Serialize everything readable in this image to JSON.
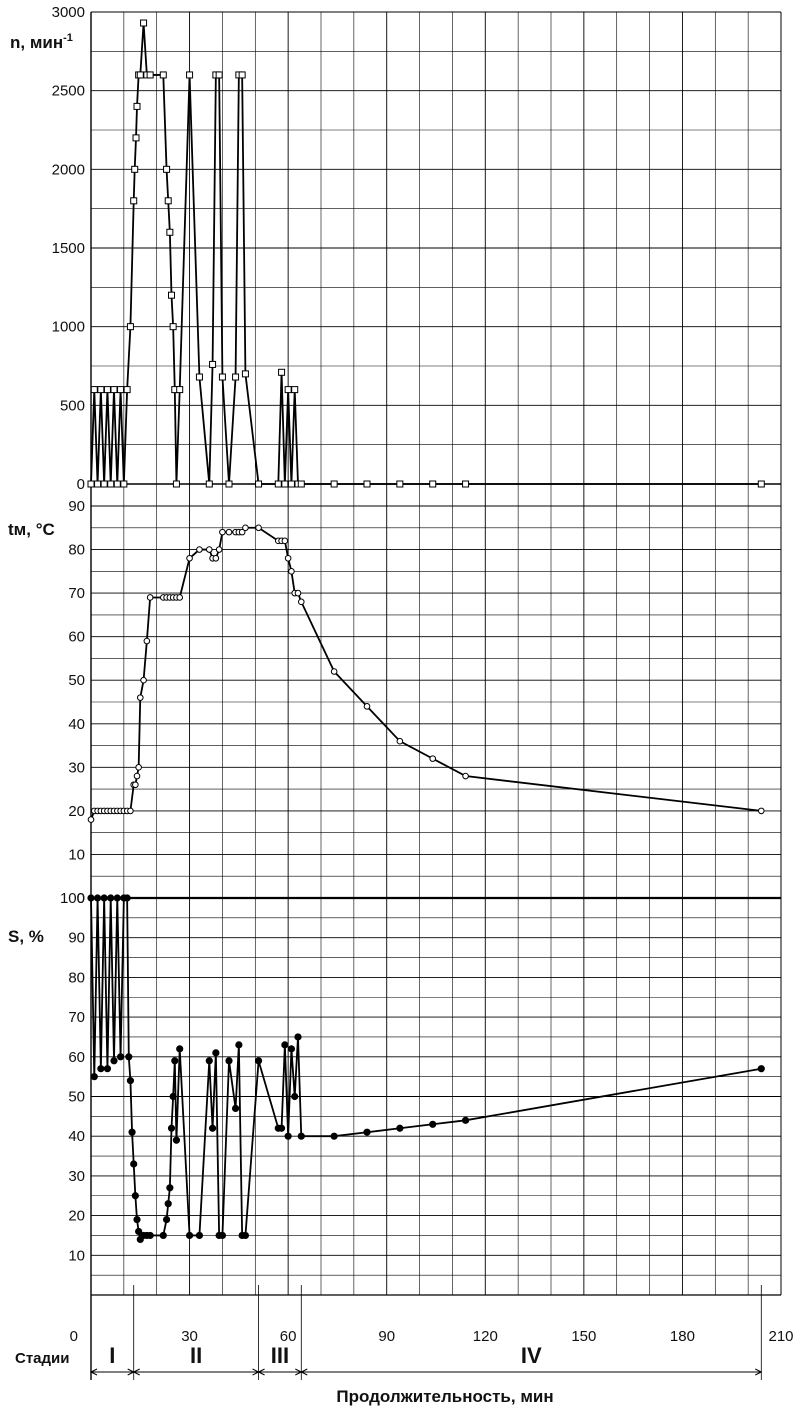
{
  "chart_data": [
    {
      "type": "line",
      "ylabel": "n, мин",
      "ylabel_sup": "-1",
      "ylim": [
        0,
        3000
      ],
      "yticks": [
        0,
        500,
        1000,
        1500,
        2000,
        2500,
        3000
      ],
      "marker": "square",
      "series": [
        {
          "x": [
            0,
            1,
            2,
            3,
            4,
            5,
            6,
            7,
            8,
            9,
            10,
            11,
            12,
            13,
            13.3,
            13.7,
            14,
            14.5,
            15,
            16,
            17,
            18,
            22,
            23,
            23.5,
            24,
            24.5,
            25,
            25.5,
            26,
            27,
            30,
            33,
            36,
            37,
            38,
            39,
            40,
            42,
            44,
            45,
            46,
            47,
            51,
            57,
            58,
            59,
            60,
            61,
            62,
            63,
            64,
            74,
            84,
            94,
            104,
            114,
            204
          ],
          "y": [
            0,
            600,
            0,
            600,
            0,
            600,
            0,
            600,
            0,
            600,
            0,
            600,
            1000,
            1800,
            2000,
            2200,
            2400,
            2600,
            2600,
            2930,
            2600,
            2600,
            2600,
            2000,
            1800,
            1600,
            1200,
            1000,
            600,
            0,
            600,
            2600,
            680,
            0,
            760,
            2600,
            2600,
            680,
            0,
            680,
            2600,
            2600,
            700,
            0,
            0,
            710,
            0,
            600,
            0,
            600,
            0,
            0,
            0,
            0,
            0,
            0,
            0,
            0
          ]
        }
      ]
    },
    {
      "type": "line",
      "ylabel": "tм, ",
      "ylabel_unit": "°C",
      "ylim": [
        0,
        90
      ],
      "yticks": [
        0,
        10,
        20,
        30,
        40,
        50,
        60,
        70,
        80,
        90
      ],
      "marker": "open-circle",
      "series": [
        {
          "x": [
            0,
            1,
            2,
            3,
            4,
            5,
            6,
            7,
            8,
            9,
            10,
            11,
            12,
            13,
            13.5,
            14,
            14.5,
            15,
            16,
            17,
            18,
            22,
            23,
            24,
            25,
            26,
            27,
            30,
            33,
            36,
            37,
            38,
            39,
            40,
            42,
            44,
            45,
            46,
            47,
            51,
            57,
            58,
            59,
            60,
            61,
            62,
            63,
            64,
            74,
            84,
            94,
            104,
            114,
            204
          ],
          "y": [
            18,
            20,
            20,
            20,
            20,
            20,
            20,
            20,
            20,
            20,
            20,
            20,
            20,
            26,
            26,
            28,
            30,
            46,
            50,
            59,
            69,
            69,
            69,
            69,
            69,
            69,
            69,
            78,
            80,
            80,
            78,
            78,
            80,
            84,
            84,
            84,
            84,
            84,
            85,
            85,
            82,
            82,
            82,
            78,
            75,
            70,
            70,
            68,
            52,
            44,
            36,
            32,
            28,
            20
          ]
        }
      ]
    },
    {
      "type": "line",
      "ylabel": "S, %",
      "ylim": [
        0,
        100
      ],
      "yticks": [
        0,
        10,
        20,
        30,
        40,
        50,
        60,
        70,
        80,
        90,
        100
      ],
      "marker": "filled-circle",
      "xlabel": "Продолжительность, мин",
      "xlim": [
        0,
        210
      ],
      "xticks": [
        0,
        30,
        60,
        90,
        120,
        150,
        180,
        210
      ],
      "series": [
        {
          "x": [
            0,
            1,
            2,
            3,
            4,
            5,
            6,
            7,
            8,
            9,
            10,
            11,
            11.5,
            12,
            12.5,
            13,
            13.5,
            14,
            14.5,
            15,
            16,
            17,
            18,
            22,
            23,
            23.5,
            24,
            24.5,
            25,
            25.5,
            26,
            27,
            30,
            33,
            36,
            37,
            38,
            39,
            40,
            42,
            44,
            45,
            46,
            47,
            51,
            57,
            58,
            59,
            60,
            61,
            62,
            63,
            64,
            74,
            84,
            94,
            104,
            114,
            204
          ],
          "y": [
            100,
            55,
            100,
            57,
            100,
            57,
            100,
            59,
            100,
            60,
            100,
            100,
            60,
            54,
            41,
            33,
            25,
            19,
            16,
            14,
            15,
            15,
            15,
            15,
            19,
            23,
            27,
            42,
            50,
            59,
            39,
            62,
            15,
            15,
            59,
            42,
            61,
            15,
            15,
            59,
            47,
            63,
            15,
            15,
            59,
            42,
            42,
            63,
            40,
            62,
            50,
            65,
            40,
            40,
            41,
            42,
            43,
            44,
            57
          ]
        }
      ]
    }
  ],
  "stages": {
    "caption": "Стадии",
    "boundaries": [
      0,
      13,
      51,
      64,
      204
    ],
    "labels": [
      "I",
      "II",
      "III",
      "IV"
    ]
  },
  "x_axis": {
    "title": "Продолжительность, мин",
    "ticks": [
      0,
      30,
      60,
      90,
      120,
      150,
      180,
      210
    ]
  },
  "style": {
    "line_color": "#000000",
    "grid_color": "#000000",
    "background": "#ffffff"
  }
}
